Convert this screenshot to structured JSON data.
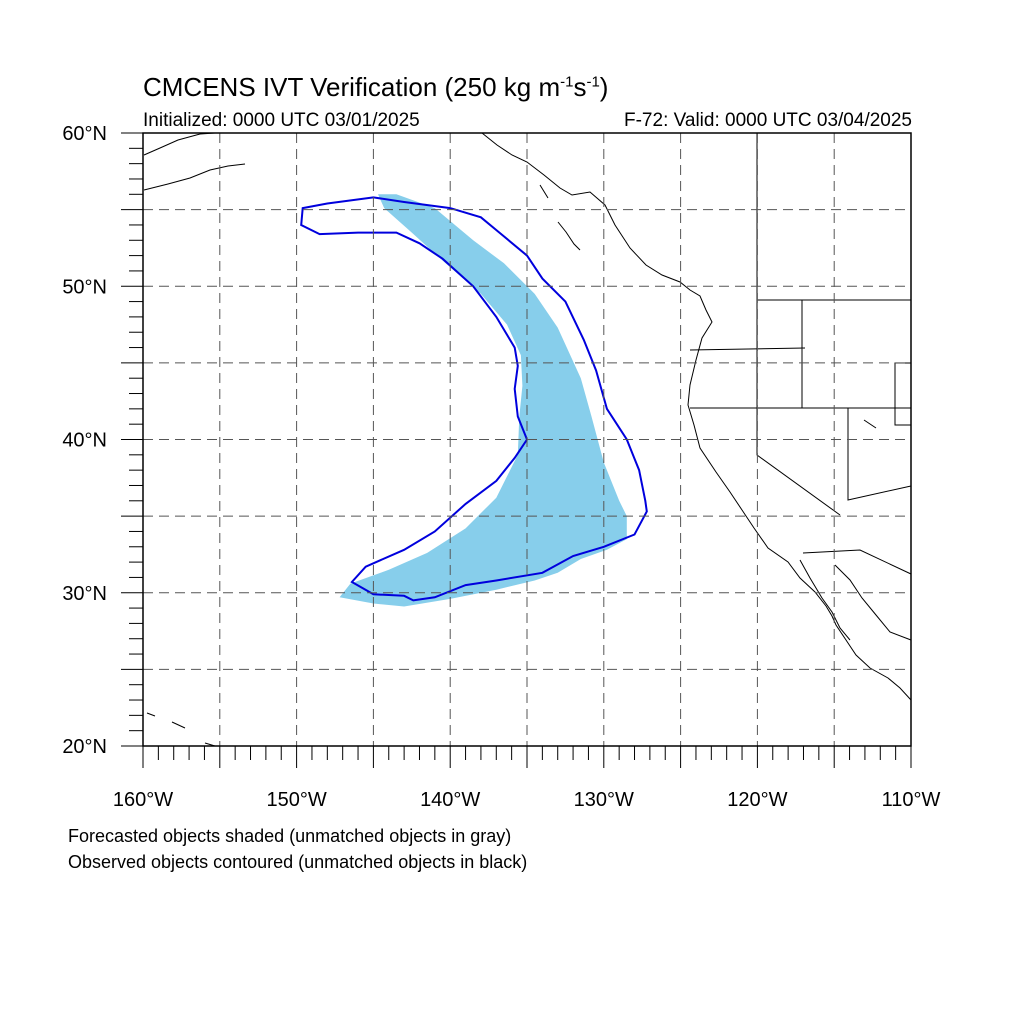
{
  "title": {
    "prefix": "CMCENS IVT Verification (250 kg m",
    "exp1": "-1",
    "mid": "s",
    "exp2": "-1",
    "suffix": ")"
  },
  "initialized": "Initialized: 0000 UTC 03/01/2025",
  "valid": "F-72: Valid: 0000 UTC 03/04/2025",
  "caption_forecast": "Forecasted objects shaded (unmatched objects in gray)",
  "caption_observed": "Observed objects contoured (unmatched objects in black)",
  "colors": {
    "forecast_fill": "#87ceeb",
    "observed_contour": "#0000dd",
    "coastline": "#000000",
    "grid": "#555555"
  },
  "map_extent": {
    "lon_min": -160,
    "lon_max": -110,
    "lat_min": 20,
    "lat_max": 60
  },
  "lat_labels": [
    {
      "lat": 60,
      "text": "60°N"
    },
    {
      "lat": 50,
      "text": "50°N"
    },
    {
      "lat": 40,
      "text": "40°N"
    },
    {
      "lat": 30,
      "text": "30°N"
    },
    {
      "lat": 20,
      "text": "20°N"
    }
  ],
  "lon_labels": [
    {
      "lon": -160,
      "text": "160°W"
    },
    {
      "lon": -150,
      "text": "150°W"
    },
    {
      "lon": -140,
      "text": "140°W"
    },
    {
      "lon": -130,
      "text": "130°W"
    },
    {
      "lon": -120,
      "text": "120°W"
    },
    {
      "lon": -110,
      "text": "110°W"
    }
  ],
  "forecast_object": [
    [
      -144.7,
      56.0
    ],
    [
      -143.5,
      56.0
    ],
    [
      -141.0,
      55.1
    ],
    [
      -138.5,
      53.0
    ],
    [
      -136.5,
      51.5
    ],
    [
      -134.5,
      49.5
    ],
    [
      -133.0,
      47.3
    ],
    [
      -131.5,
      44.0
    ],
    [
      -130.8,
      41.5
    ],
    [
      -130.0,
      38.5
    ],
    [
      -129.0,
      36.0
    ],
    [
      -128.5,
      35.0
    ],
    [
      -128.5,
      33.5
    ],
    [
      -129.8,
      32.8
    ],
    [
      -131.5,
      32.2
    ],
    [
      -133.0,
      31.3
    ],
    [
      -134.5,
      30.8
    ],
    [
      -137.0,
      30.2
    ],
    [
      -140.0,
      29.6
    ],
    [
      -143.0,
      29.1
    ],
    [
      -145.0,
      29.3
    ],
    [
      -147.2,
      29.7
    ],
    [
      -146.5,
      30.6
    ],
    [
      -144.0,
      31.5
    ],
    [
      -141.5,
      32.6
    ],
    [
      -139.0,
      34.2
    ],
    [
      -137.0,
      36.2
    ],
    [
      -135.6,
      39.0
    ],
    [
      -135.5,
      41.5
    ],
    [
      -135.3,
      43.5
    ],
    [
      -135.4,
      45.5
    ],
    [
      -136.3,
      47.5
    ],
    [
      -138.0,
      49.5
    ],
    [
      -140.3,
      51.5
    ],
    [
      -142.5,
      53.5
    ],
    [
      -144.3,
      55.1
    ]
  ],
  "observed_object": [
    [
      -149.7,
      54.0
    ],
    [
      -149.6,
      55.1
    ],
    [
      -148.0,
      55.4
    ],
    [
      -145.0,
      55.8
    ],
    [
      -143.0,
      55.5
    ],
    [
      -140.0,
      55.1
    ],
    [
      -138.0,
      54.5
    ],
    [
      -136.8,
      53.5
    ],
    [
      -135.0,
      52.0
    ],
    [
      -134.0,
      50.5
    ],
    [
      -132.5,
      49.0
    ],
    [
      -131.3,
      46.5
    ],
    [
      -130.5,
      44.5
    ],
    [
      -129.8,
      42.0
    ],
    [
      -128.5,
      40.0
    ],
    [
      -127.7,
      38.0
    ],
    [
      -127.3,
      36.0
    ],
    [
      -127.2,
      35.3
    ],
    [
      -128.0,
      33.8
    ],
    [
      -130.0,
      33.0
    ],
    [
      -132.0,
      32.4
    ],
    [
      -134.0,
      31.3
    ],
    [
      -137.0,
      30.8
    ],
    [
      -139.0,
      30.5
    ],
    [
      -141.0,
      29.7
    ],
    [
      -142.4,
      29.5
    ],
    [
      -143.0,
      29.8
    ],
    [
      -145.0,
      29.9
    ],
    [
      -146.4,
      30.7
    ],
    [
      -145.5,
      31.7
    ],
    [
      -143.0,
      32.8
    ],
    [
      -141.0,
      34.0
    ],
    [
      -139.0,
      35.8
    ],
    [
      -137.0,
      37.3
    ],
    [
      -135.8,
      38.8
    ],
    [
      -135.0,
      40.0
    ],
    [
      -135.6,
      41.5
    ],
    [
      -135.8,
      43.3
    ],
    [
      -135.6,
      44.8
    ],
    [
      -135.8,
      46.0
    ],
    [
      -137.0,
      48.0
    ],
    [
      -138.5,
      50.0
    ],
    [
      -140.5,
      51.8
    ],
    [
      -142.0,
      52.8
    ],
    [
      -143.5,
      53.5
    ],
    [
      -146.0,
      53.5
    ],
    [
      -148.5,
      53.4
    ],
    [
      -149.7,
      54.0
    ]
  ]
}
